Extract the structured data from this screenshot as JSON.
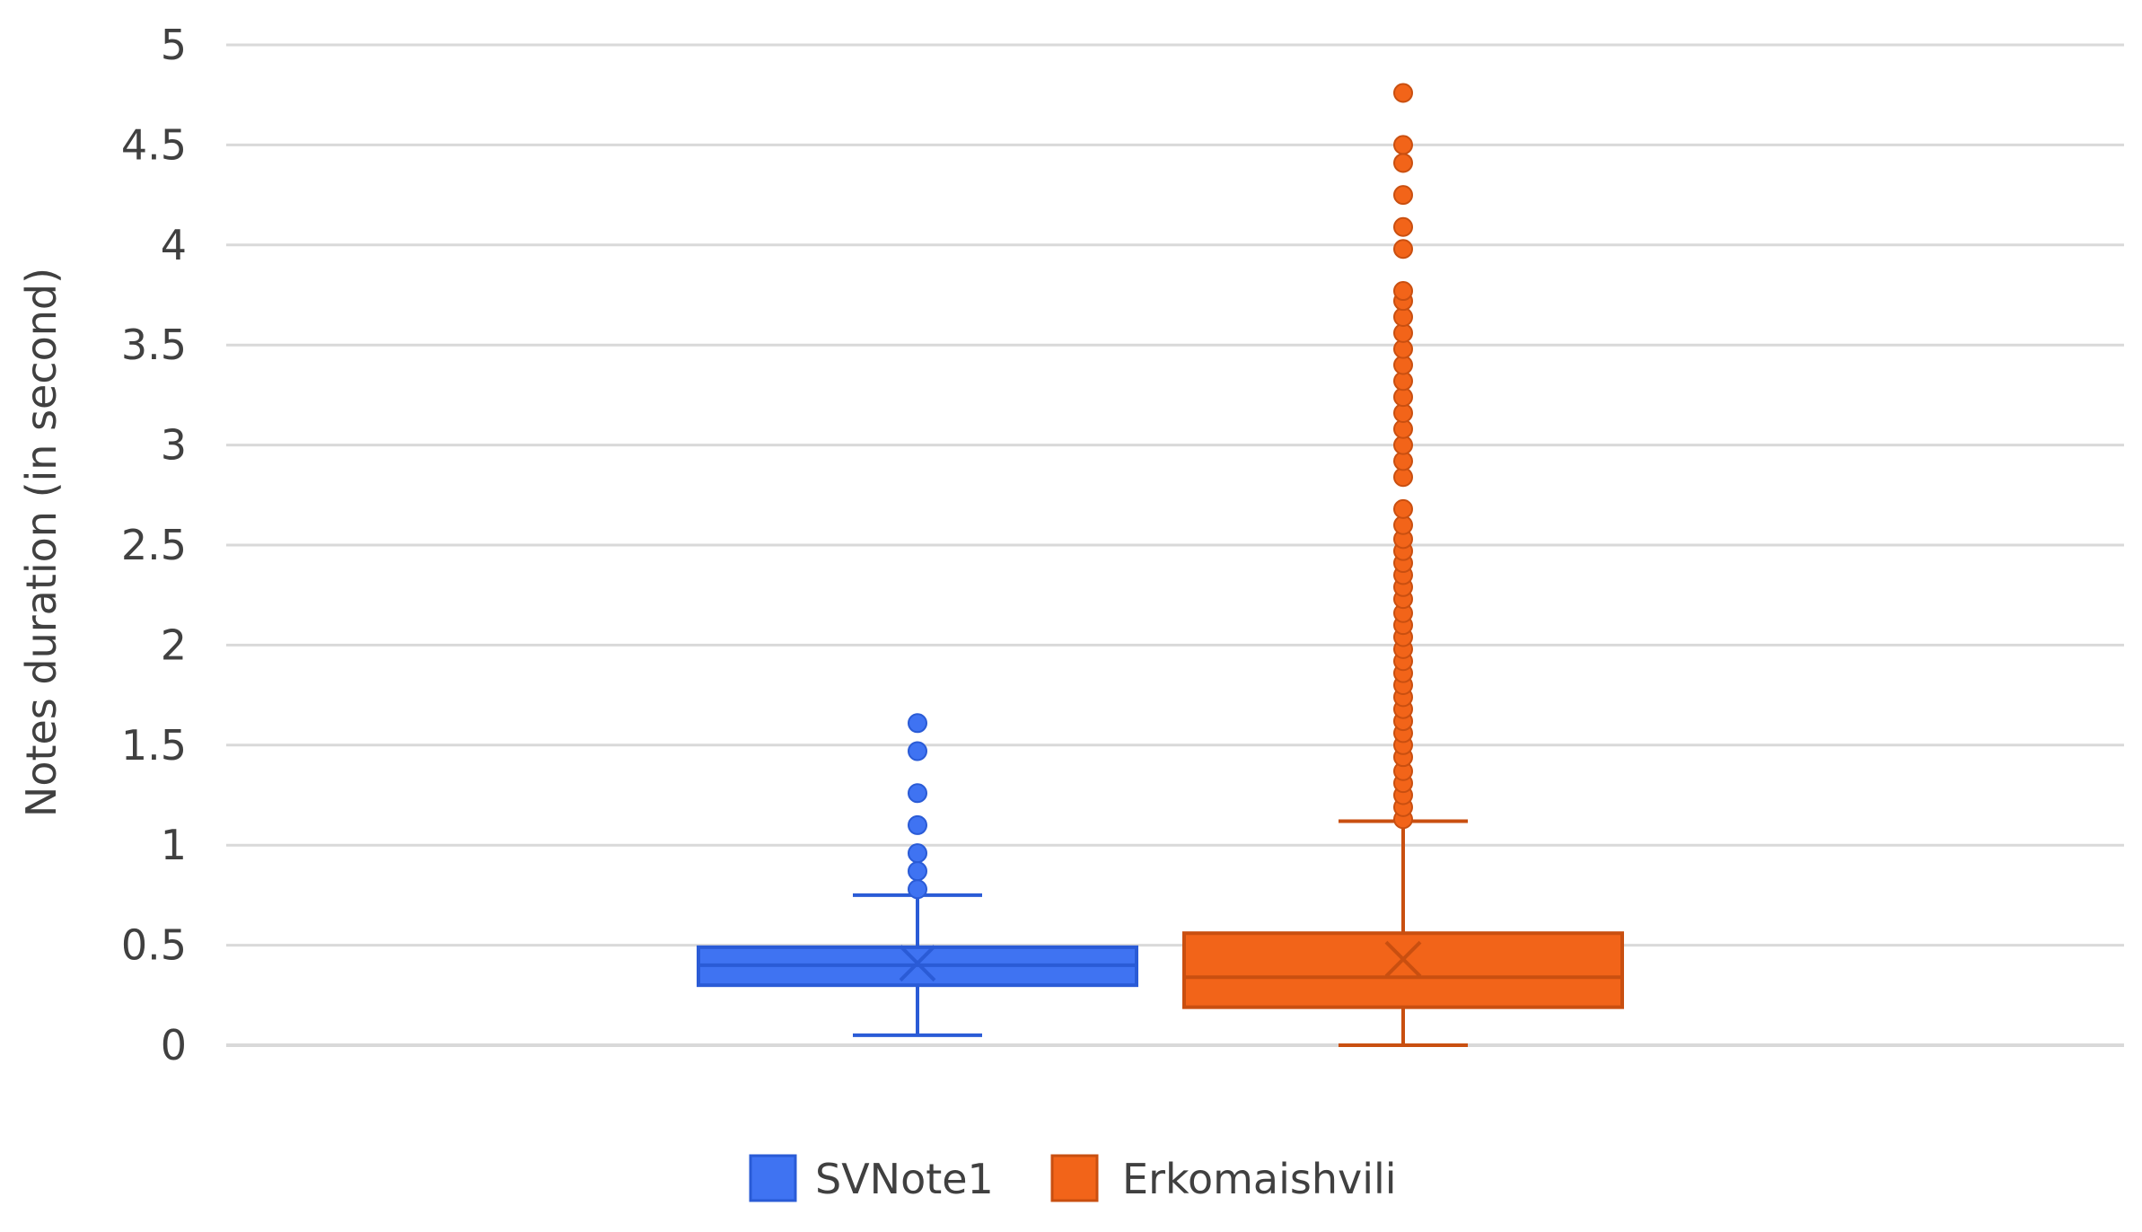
{
  "chart_data": {
    "type": "box",
    "ylabel": "Notes duration (in second)",
    "xlabel": "",
    "ylim": [
      0,
      5
    ],
    "yticks": [
      "0",
      "0.5",
      "1",
      "1.5",
      "2",
      "2.5",
      "3",
      "3.5",
      "4",
      "4.5",
      "5"
    ],
    "grid": true,
    "legend_position": "bottom",
    "series": [
      {
        "name": "SVNote1",
        "color": "#3F73F2",
        "min": 0.05,
        "q1": 0.3,
        "median": 0.4,
        "mean": 0.41,
        "q3": 0.49,
        "max": 0.75,
        "outliers": [
          0.78,
          0.87,
          0.96,
          1.1,
          1.26,
          1.47,
          1.61
        ]
      },
      {
        "name": "Erkomaishvili",
        "color": "#F26419",
        "min": 0.0,
        "q1": 0.19,
        "median": 0.34,
        "mean": 0.43,
        "q3": 0.56,
        "max": 1.12,
        "outliers": [
          1.13,
          1.19,
          1.25,
          1.31,
          1.37,
          1.44,
          1.5,
          1.56,
          1.62,
          1.68,
          1.74,
          1.8,
          1.86,
          1.92,
          1.98,
          2.04,
          2.1,
          2.16,
          2.23,
          2.29,
          2.35,
          2.41,
          2.47,
          2.53,
          2.6,
          2.68,
          2.84,
          2.92,
          3.0,
          3.08,
          3.16,
          3.24,
          3.32,
          3.4,
          3.48,
          3.56,
          3.64,
          3.72,
          3.77,
          3.98,
          4.09,
          4.25,
          4.41,
          4.5,
          4.76
        ]
      }
    ]
  }
}
